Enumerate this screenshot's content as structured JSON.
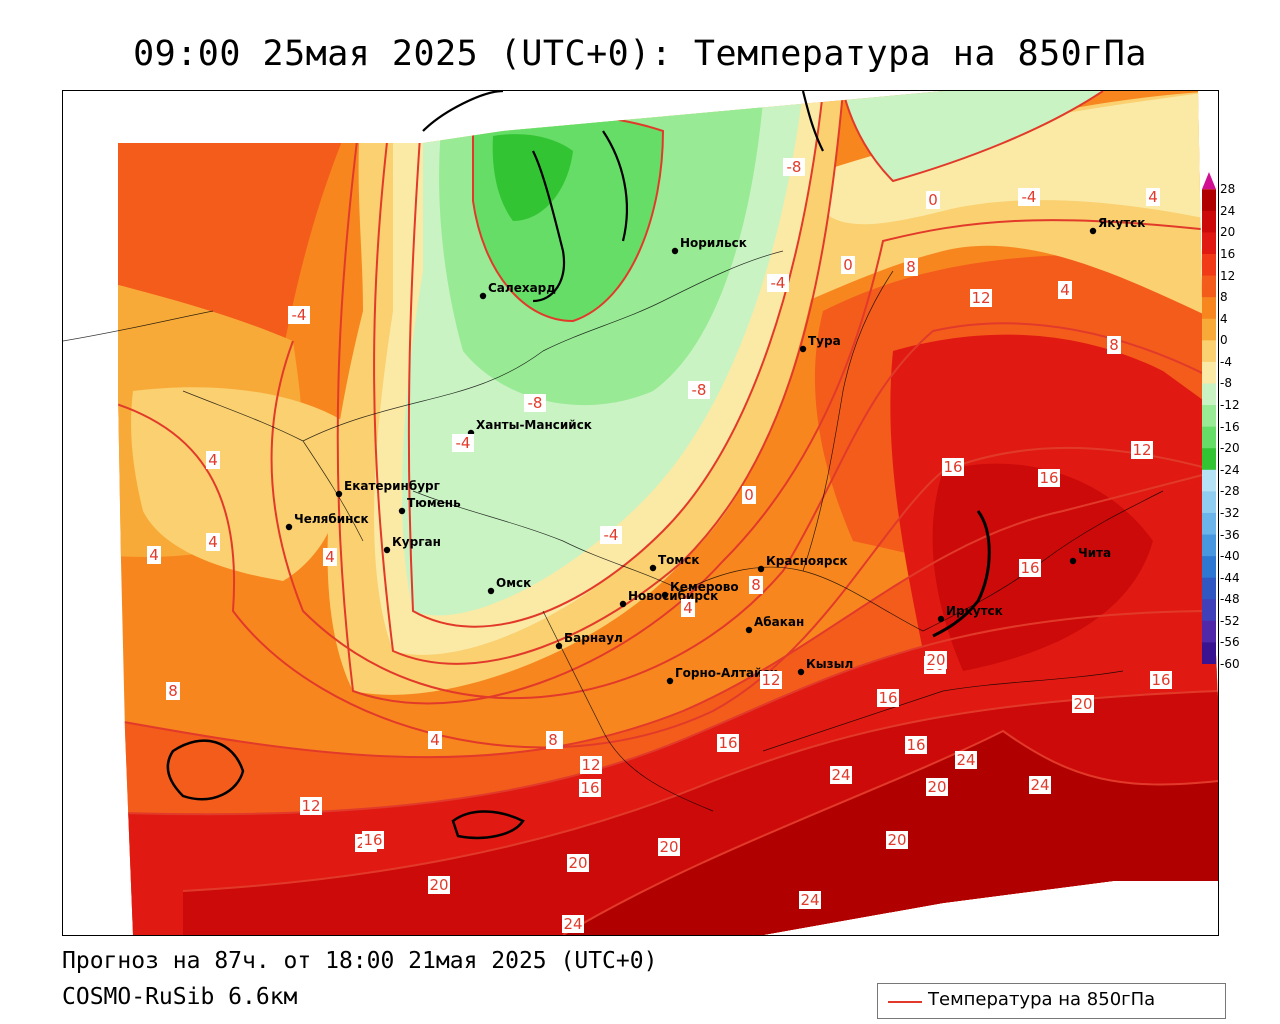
{
  "title": "09:00 25мая 2025 (UTC+0): Температура на 850гПа",
  "footer": {
    "forecast": "Прогноз на 87ч. от 18:00 21мая 2025 (UTC+0)",
    "model": "COSMO-RuSib 6.6км"
  },
  "legend": {
    "label": "Температура на 850гПа",
    "line_color": "#e23a2a"
  },
  "colorbar": {
    "ticks": [
      "28",
      "24",
      "20",
      "16",
      "12",
      "8",
      "4",
      "0",
      "-4",
      "-8",
      "-12",
      "-16",
      "-20",
      "-24",
      "-28",
      "-32",
      "-36",
      "-40",
      "-44",
      "-48",
      "-52",
      "-56",
      "-60"
    ],
    "colors": [
      "#b00000",
      "#cc0a0a",
      "#e01a12",
      "#f03a18",
      "#f45c1c",
      "#f7861e",
      "#f8aa38",
      "#fad070",
      "#fbe9a6",
      "#c9f3c3",
      "#98ea95",
      "#66dd66",
      "#33c433",
      "#b5e2f5",
      "#90cdf0",
      "#6bb5ea",
      "#4898e0",
      "#2f78d2",
      "#3058c0",
      "#4040b8",
      "#5028a8",
      "#3a1490"
    ]
  },
  "cities": [
    {
      "name": "Салехард"
    },
    {
      "name": "Норильск"
    },
    {
      "name": "Якутск"
    },
    {
      "name": "Тура"
    },
    {
      "name": "Ханты-Мансийск"
    },
    {
      "name": "Екатеринбург"
    },
    {
      "name": "Тюмень"
    },
    {
      "name": "Челябинск"
    },
    {
      "name": "Курган"
    },
    {
      "name": "Омск"
    },
    {
      "name": "Новосибирск"
    },
    {
      "name": "Томск"
    },
    {
      "name": "Красноярск"
    },
    {
      "name": "Кемерово"
    },
    {
      "name": "Барнаул"
    },
    {
      "name": "Абакан"
    },
    {
      "name": "Иркутск"
    },
    {
      "name": "Чита"
    },
    {
      "name": "Горно-Алтайск"
    },
    {
      "name": "Кызыл"
    }
  ],
  "contour_labels": [
    "-8",
    "-4",
    "0",
    "4",
    "-4",
    "0",
    "8",
    "4",
    "12",
    "8",
    "-4",
    "4",
    "-8",
    "-8",
    "-4",
    "16",
    "16",
    "12",
    "-4",
    "0",
    "16",
    "4",
    "4",
    "4",
    "8",
    "4",
    "8",
    "12",
    "20",
    "16",
    "16",
    "20",
    "16",
    "12",
    "8",
    "4",
    "20",
    "24",
    "24",
    "24",
    "20",
    "16",
    "12",
    "20",
    "20",
    "20",
    "20",
    "20",
    "24",
    "24",
    "8",
    "16",
    "16"
  ]
}
